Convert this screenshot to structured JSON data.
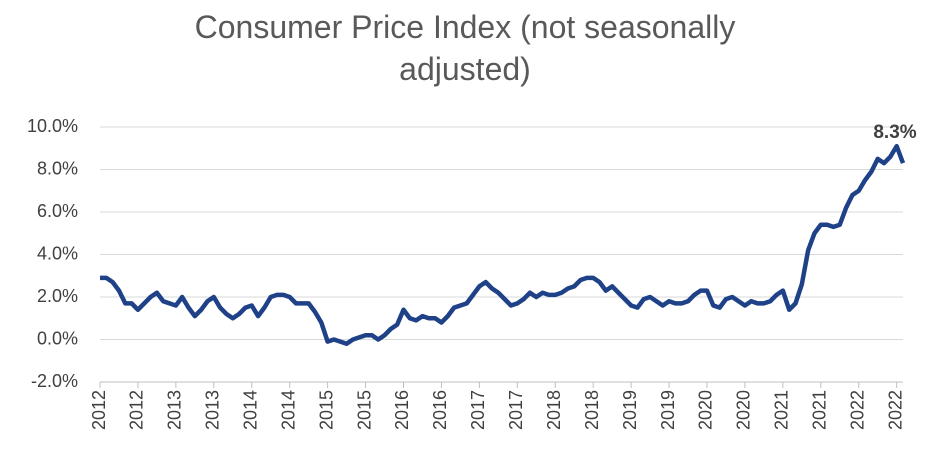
{
  "chart_data": {
    "type": "line",
    "title": "Consumer Price Index (not seasonally adjusted)",
    "categories": [
      "2012",
      null,
      null,
      null,
      null,
      null,
      "2012",
      null,
      null,
      null,
      null,
      null,
      "2013",
      null,
      null,
      null,
      null,
      null,
      "2013",
      null,
      null,
      null,
      null,
      null,
      "2014",
      null,
      null,
      null,
      null,
      null,
      "2014",
      null,
      null,
      null,
      null,
      null,
      "2015",
      null,
      null,
      null,
      null,
      null,
      "2015",
      null,
      null,
      null,
      null,
      null,
      "2016",
      null,
      null,
      null,
      null,
      null,
      "2016",
      null,
      null,
      null,
      null,
      null,
      "2017",
      null,
      null,
      null,
      null,
      null,
      "2017",
      null,
      null,
      null,
      null,
      null,
      "2018",
      null,
      null,
      null,
      null,
      null,
      "2018",
      null,
      null,
      null,
      null,
      null,
      "2019",
      null,
      null,
      null,
      null,
      null,
      "2019",
      null,
      null,
      null,
      null,
      null,
      "2020",
      null,
      null,
      null,
      null,
      null,
      "2020",
      null,
      null,
      null,
      null,
      null,
      "2021",
      null,
      null,
      null,
      null,
      null,
      "2021",
      null,
      null,
      null,
      null,
      null,
      "2022",
      null,
      null,
      null,
      null,
      null,
      "2022",
      null
    ],
    "series": [
      {
        "name": "CPI",
        "color": "#1f4188",
        "values": [
          2.9,
          2.9,
          2.7,
          2.3,
          1.7,
          1.7,
          1.4,
          1.7,
          2.0,
          2.2,
          1.8,
          1.7,
          1.6,
          2.0,
          1.5,
          1.1,
          1.4,
          1.8,
          2.0,
          1.5,
          1.2,
          1.0,
          1.2,
          1.5,
          1.6,
          1.1,
          1.5,
          2.0,
          2.1,
          2.1,
          2.0,
          1.7,
          1.7,
          1.7,
          1.3,
          0.8,
          -0.1,
          0.0,
          -0.1,
          -0.2,
          0.0,
          0.1,
          0.2,
          0.2,
          0.0,
          0.2,
          0.5,
          0.7,
          1.4,
          1.0,
          0.9,
          1.1,
          1.0,
          1.0,
          0.8,
          1.1,
          1.5,
          1.6,
          1.7,
          2.1,
          2.5,
          2.7,
          2.4,
          2.2,
          1.9,
          1.6,
          1.7,
          1.9,
          2.2,
          2.0,
          2.2,
          2.1,
          2.1,
          2.2,
          2.4,
          2.5,
          2.8,
          2.9,
          2.9,
          2.7,
          2.3,
          2.5,
          2.2,
          1.9,
          1.6,
          1.5,
          1.9,
          2.0,
          1.8,
          1.6,
          1.8,
          1.7,
          1.7,
          1.8,
          2.1,
          2.3,
          2.3,
          1.6,
          1.5,
          1.9,
          2.0,
          1.8,
          1.6,
          1.8,
          1.7,
          1.7,
          1.8,
          2.1,
          2.3,
          1.4,
          1.7,
          2.6,
          4.2,
          5.0,
          5.4,
          5.4,
          5.3,
          5.4,
          6.2,
          6.8,
          7.0,
          7.5,
          7.9,
          8.5,
          8.3,
          8.6,
          9.1,
          8.3
        ],
        "value_labels": [
          null,
          null,
          null,
          null,
          null,
          null,
          null,
          null,
          null,
          null,
          null,
          null,
          null,
          null,
          null,
          null,
          null,
          null,
          null,
          null,
          null,
          null,
          null,
          null,
          null,
          null,
          null,
          null,
          null,
          null,
          null,
          null,
          null,
          null,
          null,
          null,
          null,
          null,
          null,
          null,
          null,
          null,
          null,
          null,
          null,
          null,
          null,
          null,
          null,
          null,
          null,
          null,
          null,
          null,
          null,
          null,
          null,
          null,
          null,
          null,
          null,
          null,
          null,
          null,
          null,
          null,
          null,
          null,
          null,
          null,
          null,
          null,
          null,
          null,
          null,
          null,
          null,
          null,
          null,
          null,
          null,
          null,
          null,
          null,
          null,
          null,
          null,
          null,
          null,
          null,
          null,
          null,
          null,
          null,
          null,
          null,
          null,
          null,
          null,
          null,
          null,
          null,
          null,
          null,
          null,
          null,
          null,
          null,
          null,
          null,
          null,
          null,
          null,
          null,
          null,
          null,
          null,
          null,
          null,
          null,
          null,
          null,
          null,
          null,
          null,
          null,
          null,
          "8.3%"
        ]
      }
    ],
    "ylim": [
      -2,
      10
    ],
    "yticks": [
      {
        "value": -2,
        "label": "-2.0%"
      },
      {
        "value": 0,
        "label": "0.0%"
      },
      {
        "value": 2,
        "label": "2.0%"
      },
      {
        "value": 4,
        "label": "4.0%"
      },
      {
        "value": 6,
        "label": "6.0%"
      },
      {
        "value": 8,
        "label": "8.0%"
      },
      {
        "value": 10,
        "label": "10.0%"
      }
    ],
    "grid": true
  }
}
